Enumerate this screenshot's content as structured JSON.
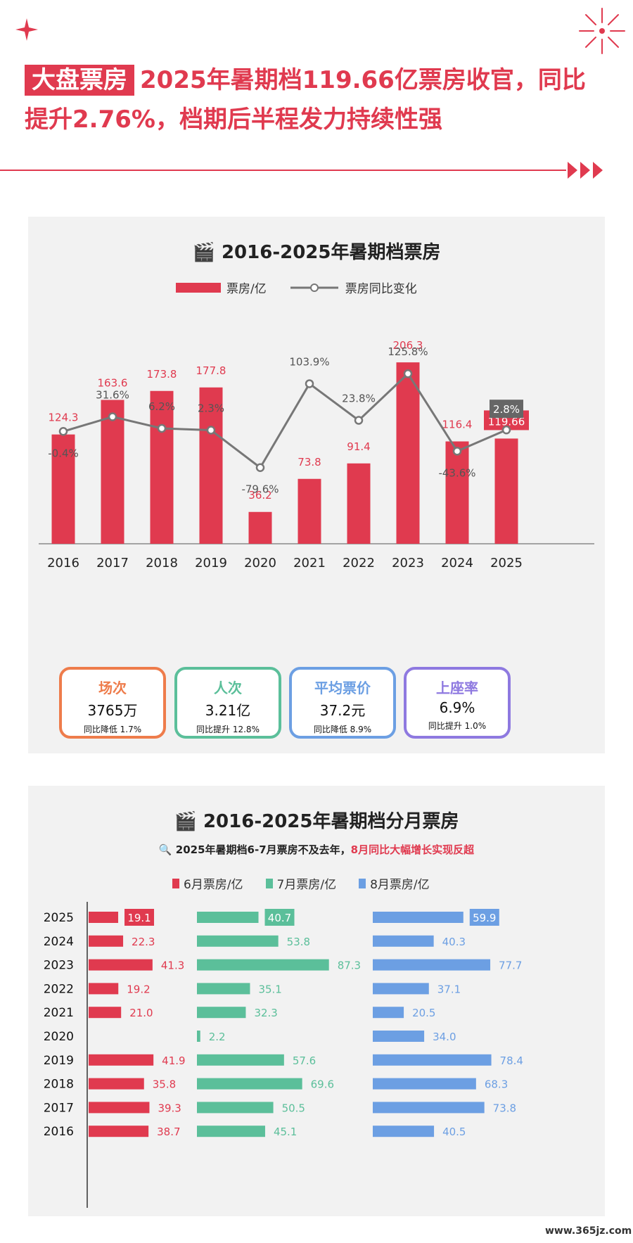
{
  "header": {
    "tag": "大盘票房",
    "headline": "2025年暑期档119.66亿票房收官，同比提升2.76%，档期后半程发力持续性强"
  },
  "colors": {
    "red": "#e03a4f",
    "green": "#5bbf9a",
    "blue": "#6c9fe3",
    "gray": "#777777",
    "orange": "#ee7c4b",
    "purple": "#8e79e0"
  },
  "chart_data": [
    {
      "type": "bar",
      "title": "2016-2025年暑期档票房",
      "categories": [
        "2016",
        "2017",
        "2018",
        "2019",
        "2020",
        "2021",
        "2022",
        "2023",
        "2024",
        "2025"
      ],
      "series": [
        {
          "name": "票房/亿",
          "values": [
            124.3,
            163.6,
            173.8,
            177.8,
            36.2,
            73.8,
            91.4,
            206.3,
            116.4,
            119.66
          ],
          "labels": [
            "124.3",
            "163.6",
            "173.8",
            "177.8",
            "36.2",
            "73.8",
            "91.4",
            "206.3",
            "116.4",
            "119.66"
          ]
        },
        {
          "name": "票房同比变化",
          "type": "line",
          "values": [
            -0.4,
            31.6,
            6.2,
            2.3,
            -79.6,
            103.9,
            23.8,
            125.8,
            -43.6,
            2.8
          ],
          "labels": [
            "-0.4%",
            "31.6%",
            "6.2%",
            "2.3%",
            "-79.6%",
            "103.9%",
            "23.8%",
            "125.8%",
            "-43.6%",
            "2.8%"
          ]
        }
      ]
    },
    {
      "type": "bar",
      "orientation": "horizontal",
      "title": "2016-2025年暑期档分月票房",
      "subtitle": "2025年暑期档6-7月票房不及去年，",
      "subtitle_highlight": "8月同比大幅增长实现反超",
      "categories": [
        "2025",
        "2024",
        "2023",
        "2022",
        "2021",
        "2020",
        "2019",
        "2018",
        "2017",
        "2016"
      ],
      "series": [
        {
          "name": "6月票房/亿",
          "values": [
            19.1,
            22.3,
            41.3,
            19.2,
            21.0,
            null,
            41.9,
            35.8,
            39.3,
            38.7
          ],
          "labels": [
            "19.1",
            "22.3",
            "41.3",
            "19.2",
            "21.0",
            "",
            "41.9",
            "35.8",
            "39.3",
            "38.7"
          ]
        },
        {
          "name": "7月票房/亿",
          "values": [
            40.7,
            53.8,
            87.3,
            35.1,
            32.3,
            2.2,
            57.6,
            69.6,
            50.5,
            45.1
          ],
          "labels": [
            "40.7",
            "53.8",
            "87.3",
            "35.1",
            "32.3",
            "2.2",
            "57.6",
            "69.6",
            "50.5",
            "45.1"
          ]
        },
        {
          "name": "8月票房/亿",
          "values": [
            59.9,
            40.3,
            77.7,
            37.1,
            20.5,
            34.0,
            78.4,
            68.3,
            73.8,
            40.5
          ],
          "labels": [
            "59.9",
            "40.3",
            "77.7",
            "37.1",
            "20.5",
            "34.0",
            "78.4",
            "68.3",
            "73.8",
            "40.5"
          ]
        }
      ]
    }
  ],
  "metrics": [
    {
      "title": "场次",
      "value": "3765万",
      "change": "同比降低 1.7%"
    },
    {
      "title": "人次",
      "value": "3.21亿",
      "change": "同比提升 12.8%"
    },
    {
      "title": "平均票价",
      "value": "37.2元",
      "change": "同比降低 8.9%"
    },
    {
      "title": "上座率",
      "value": "6.9%",
      "change": "同比提升 1.0%"
    }
  ],
  "watermark": "www.365jz.com"
}
